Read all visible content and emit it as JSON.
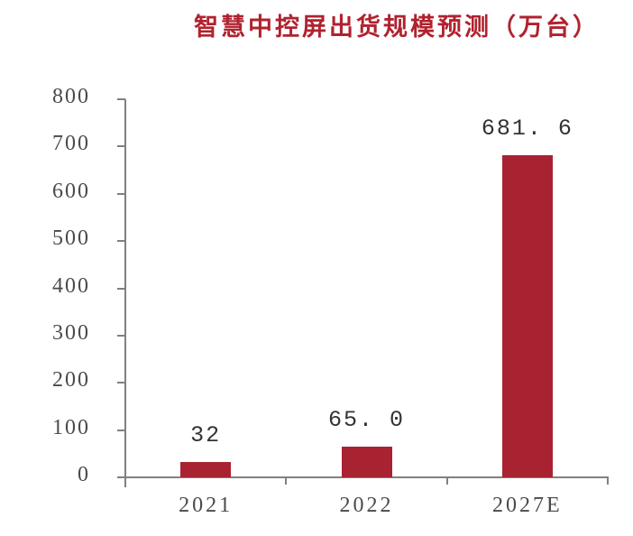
{
  "chart_data": {
    "type": "bar",
    "title": "智慧中控屏出货规模预测（万台）",
    "categories": [
      "2021",
      "2022",
      "2027E"
    ],
    "values": [
      32,
      65.0,
      681.6
    ],
    "value_labels": [
      "32",
      "65. 0",
      "681. 6"
    ],
    "xlabel": "",
    "ylabel": "",
    "ylim": [
      0,
      800
    ],
    "yticks": [
      0,
      100,
      200,
      300,
      400,
      500,
      600,
      700,
      800
    ],
    "ytick_labels": [
      "0",
      "100",
      "200",
      "300",
      "400",
      "500",
      "600",
      "700",
      "800"
    ],
    "grid": false,
    "legend": null,
    "colors": {
      "bar": "#A82232",
      "title": "#B0222F",
      "axis": "#808080",
      "text": "#4A4A4A"
    }
  }
}
